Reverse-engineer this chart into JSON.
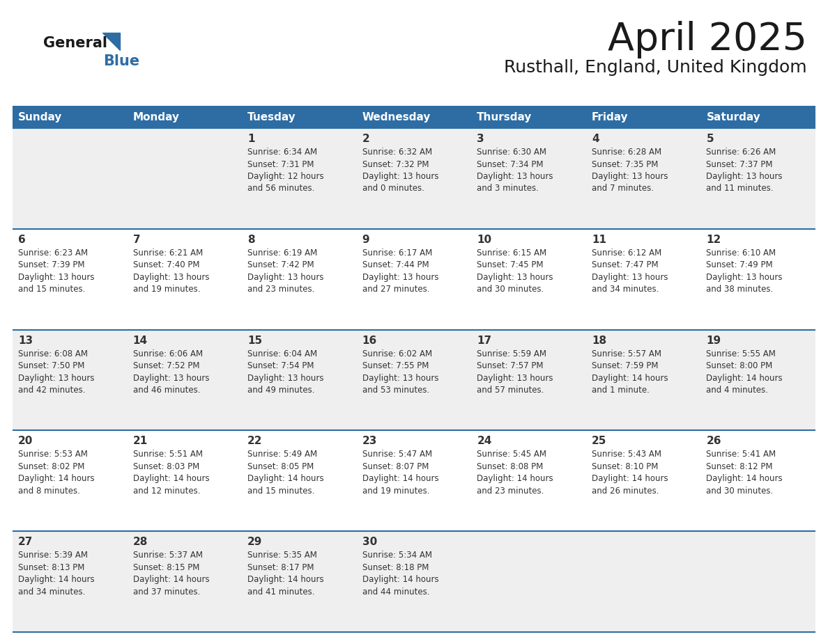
{
  "title": "April 2025",
  "subtitle": "Rusthall, England, United Kingdom",
  "header_bg": "#2E6DA4",
  "header_text_color": "#FFFFFF",
  "cell_bg_odd": "#EFEFEF",
  "cell_bg_even": "#FFFFFF",
  "text_color": "#333333",
  "line_color": "#2E6DA4",
  "days_of_week": [
    "Sunday",
    "Monday",
    "Tuesday",
    "Wednesday",
    "Thursday",
    "Friday",
    "Saturday"
  ],
  "logo_general_color": "#1a1a1a",
  "logo_blue_color": "#2E6DA4",
  "calendar_data": [
    [
      {
        "day": "",
        "info": ""
      },
      {
        "day": "",
        "info": ""
      },
      {
        "day": "1",
        "info": "Sunrise: 6:34 AM\nSunset: 7:31 PM\nDaylight: 12 hours\nand 56 minutes."
      },
      {
        "day": "2",
        "info": "Sunrise: 6:32 AM\nSunset: 7:32 PM\nDaylight: 13 hours\nand 0 minutes."
      },
      {
        "day": "3",
        "info": "Sunrise: 6:30 AM\nSunset: 7:34 PM\nDaylight: 13 hours\nand 3 minutes."
      },
      {
        "day": "4",
        "info": "Sunrise: 6:28 AM\nSunset: 7:35 PM\nDaylight: 13 hours\nand 7 minutes."
      },
      {
        "day": "5",
        "info": "Sunrise: 6:26 AM\nSunset: 7:37 PM\nDaylight: 13 hours\nand 11 minutes."
      }
    ],
    [
      {
        "day": "6",
        "info": "Sunrise: 6:23 AM\nSunset: 7:39 PM\nDaylight: 13 hours\nand 15 minutes."
      },
      {
        "day": "7",
        "info": "Sunrise: 6:21 AM\nSunset: 7:40 PM\nDaylight: 13 hours\nand 19 minutes."
      },
      {
        "day": "8",
        "info": "Sunrise: 6:19 AM\nSunset: 7:42 PM\nDaylight: 13 hours\nand 23 minutes."
      },
      {
        "day": "9",
        "info": "Sunrise: 6:17 AM\nSunset: 7:44 PM\nDaylight: 13 hours\nand 27 minutes."
      },
      {
        "day": "10",
        "info": "Sunrise: 6:15 AM\nSunset: 7:45 PM\nDaylight: 13 hours\nand 30 minutes."
      },
      {
        "day": "11",
        "info": "Sunrise: 6:12 AM\nSunset: 7:47 PM\nDaylight: 13 hours\nand 34 minutes."
      },
      {
        "day": "12",
        "info": "Sunrise: 6:10 AM\nSunset: 7:49 PM\nDaylight: 13 hours\nand 38 minutes."
      }
    ],
    [
      {
        "day": "13",
        "info": "Sunrise: 6:08 AM\nSunset: 7:50 PM\nDaylight: 13 hours\nand 42 minutes."
      },
      {
        "day": "14",
        "info": "Sunrise: 6:06 AM\nSunset: 7:52 PM\nDaylight: 13 hours\nand 46 minutes."
      },
      {
        "day": "15",
        "info": "Sunrise: 6:04 AM\nSunset: 7:54 PM\nDaylight: 13 hours\nand 49 minutes."
      },
      {
        "day": "16",
        "info": "Sunrise: 6:02 AM\nSunset: 7:55 PM\nDaylight: 13 hours\nand 53 minutes."
      },
      {
        "day": "17",
        "info": "Sunrise: 5:59 AM\nSunset: 7:57 PM\nDaylight: 13 hours\nand 57 minutes."
      },
      {
        "day": "18",
        "info": "Sunrise: 5:57 AM\nSunset: 7:59 PM\nDaylight: 14 hours\nand 1 minute."
      },
      {
        "day": "19",
        "info": "Sunrise: 5:55 AM\nSunset: 8:00 PM\nDaylight: 14 hours\nand 4 minutes."
      }
    ],
    [
      {
        "day": "20",
        "info": "Sunrise: 5:53 AM\nSunset: 8:02 PM\nDaylight: 14 hours\nand 8 minutes."
      },
      {
        "day": "21",
        "info": "Sunrise: 5:51 AM\nSunset: 8:03 PM\nDaylight: 14 hours\nand 12 minutes."
      },
      {
        "day": "22",
        "info": "Sunrise: 5:49 AM\nSunset: 8:05 PM\nDaylight: 14 hours\nand 15 minutes."
      },
      {
        "day": "23",
        "info": "Sunrise: 5:47 AM\nSunset: 8:07 PM\nDaylight: 14 hours\nand 19 minutes."
      },
      {
        "day": "24",
        "info": "Sunrise: 5:45 AM\nSunset: 8:08 PM\nDaylight: 14 hours\nand 23 minutes."
      },
      {
        "day": "25",
        "info": "Sunrise: 5:43 AM\nSunset: 8:10 PM\nDaylight: 14 hours\nand 26 minutes."
      },
      {
        "day": "26",
        "info": "Sunrise: 5:41 AM\nSunset: 8:12 PM\nDaylight: 14 hours\nand 30 minutes."
      }
    ],
    [
      {
        "day": "27",
        "info": "Sunrise: 5:39 AM\nSunset: 8:13 PM\nDaylight: 14 hours\nand 34 minutes."
      },
      {
        "day": "28",
        "info": "Sunrise: 5:37 AM\nSunset: 8:15 PM\nDaylight: 14 hours\nand 37 minutes."
      },
      {
        "day": "29",
        "info": "Sunrise: 5:35 AM\nSunset: 8:17 PM\nDaylight: 14 hours\nand 41 minutes."
      },
      {
        "day": "30",
        "info": "Sunrise: 5:34 AM\nSunset: 8:18 PM\nDaylight: 14 hours\nand 44 minutes."
      },
      {
        "day": "",
        "info": ""
      },
      {
        "day": "",
        "info": ""
      },
      {
        "day": "",
        "info": ""
      }
    ]
  ]
}
